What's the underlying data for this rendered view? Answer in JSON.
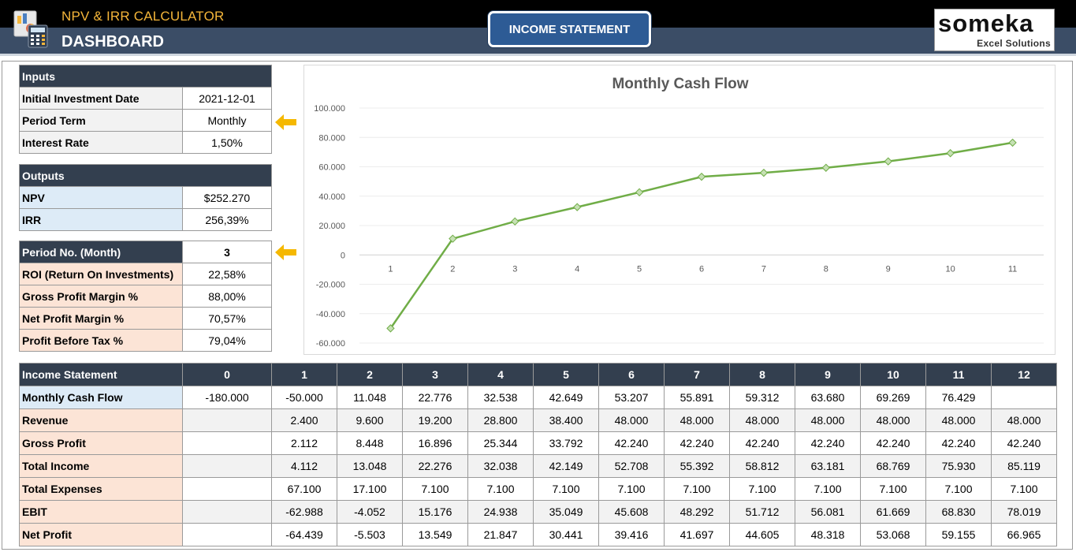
{
  "header": {
    "app_title": "NPV & IRR CALCULATOR",
    "page_title": "DASHBOARD",
    "nav_button": "INCOME STATEMENT",
    "logo_main": "someka",
    "logo_sub": "Excel Solutions"
  },
  "inputs": {
    "title": "Inputs",
    "rows": [
      {
        "label": "Initial Investment Date",
        "value": "2021-12-01"
      },
      {
        "label": "Period Term",
        "value": "Monthly"
      },
      {
        "label": "Interest Rate",
        "value": "1,50%"
      }
    ]
  },
  "outputs": {
    "title": "Outputs",
    "rows": [
      {
        "label": "NPV",
        "value": "$252.270"
      },
      {
        "label": "IRR",
        "value": "256,39%"
      }
    ]
  },
  "period": {
    "label": "Period No. (Month)",
    "value": "3",
    "rows": [
      {
        "label": "ROI (Return On Investments)",
        "value": "22,58%"
      },
      {
        "label": "Gross Profit Margin %",
        "value": "88,00%"
      },
      {
        "label": "Net Profit Margin %",
        "value": "70,57%"
      },
      {
        "label": "Profit Before Tax %",
        "value": "79,04%"
      }
    ]
  },
  "colors": {
    "header_bar": "#3b4d66",
    "accent_orange": "#f5b63a",
    "section_header": "#333f4f",
    "button_blue": "#2d5b95",
    "line_green": "#70ad47"
  },
  "chart_data": {
    "type": "line",
    "title": "Monthly Cash Flow",
    "categories": [
      "1",
      "2",
      "3",
      "4",
      "5",
      "6",
      "7",
      "8",
      "9",
      "10",
      "11"
    ],
    "series": [
      {
        "values": [
          -50000,
          11048,
          22776,
          32538,
          42649,
          53207,
          55891,
          59312,
          63680,
          69269,
          76429
        ]
      }
    ],
    "ylim": [
      -60000,
      100000
    ],
    "yticks": [
      "100.000",
      "80.000",
      "60.000",
      "40.000",
      "20.000",
      "0",
      "-20.000",
      "-40.000",
      "-60.000"
    ],
    "ytick_values": [
      100000,
      80000,
      60000,
      40000,
      20000,
      0,
      -20000,
      -40000,
      -60000
    ],
    "grid": true,
    "legend": "none"
  },
  "income_statement": {
    "header": [
      "Income Statement",
      "0",
      "1",
      "2",
      "3",
      "4",
      "5",
      "6",
      "7",
      "8",
      "9",
      "10",
      "11",
      "12"
    ],
    "rows": [
      {
        "label": "Monthly Cash Flow",
        "style": "blue",
        "cells": [
          "-180.000",
          "-50.000",
          "11.048",
          "22.776",
          "32.538",
          "42.649",
          "53.207",
          "55.891",
          "59.312",
          "63.680",
          "69.269",
          "76.429",
          ""
        ]
      },
      {
        "label": "Revenue",
        "style": "orange",
        "cells": [
          "",
          "2.400",
          "9.600",
          "19.200",
          "28.800",
          "38.400",
          "48.000",
          "48.000",
          "48.000",
          "48.000",
          "48.000",
          "48.000",
          "48.000"
        ]
      },
      {
        "label": "Gross Profit",
        "style": "orange",
        "cells": [
          "",
          "2.112",
          "8.448",
          "16.896",
          "25.344",
          "33.792",
          "42.240",
          "42.240",
          "42.240",
          "42.240",
          "42.240",
          "42.240",
          "42.240"
        ]
      },
      {
        "label": "Total Income",
        "style": "orange",
        "cells": [
          "",
          "4.112",
          "13.048",
          "22.276",
          "32.038",
          "42.149",
          "52.708",
          "55.392",
          "58.812",
          "63.181",
          "68.769",
          "75.930",
          "85.119"
        ]
      },
      {
        "label": "Total Expenses",
        "style": "orange",
        "cells": [
          "",
          "67.100",
          "17.100",
          "7.100",
          "7.100",
          "7.100",
          "7.100",
          "7.100",
          "7.100",
          "7.100",
          "7.100",
          "7.100",
          "7.100"
        ]
      },
      {
        "label": "EBIT",
        "style": "orange",
        "cells": [
          "",
          "-62.988",
          "-4.052",
          "15.176",
          "24.938",
          "35.049",
          "45.608",
          "48.292",
          "51.712",
          "56.081",
          "61.669",
          "68.830",
          "78.019"
        ]
      },
      {
        "label": "Net Profit",
        "style": "orange",
        "cells": [
          "",
          "-64.439",
          "-5.503",
          "13.549",
          "21.847",
          "30.441",
          "39.416",
          "41.697",
          "44.605",
          "48.318",
          "53.068",
          "59.155",
          "66.965"
        ]
      }
    ]
  }
}
